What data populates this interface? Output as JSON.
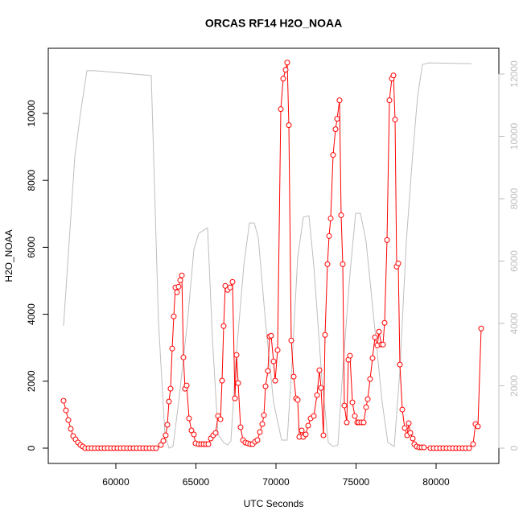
{
  "chart_data": {
    "type": "line",
    "title": "ORCAS RF14 H2O_NOAA",
    "xlabel": "UTC Seconds",
    "ylabel": "H2O_NOAA",
    "xlim": [
      55780,
      83920
    ],
    "ylim": [
      -457,
      11947
    ],
    "y2lim": [
      -490,
      12826
    ],
    "xticks": [
      60000,
      65000,
      70000,
      75000,
      80000
    ],
    "yticks": [
      0,
      2000,
      4000,
      6000,
      8000,
      10000
    ],
    "y2ticks": [
      0,
      2000,
      4000,
      6000,
      8000,
      10000,
      12000
    ],
    "y2color": "#bebebe",
    "series": [
      {
        "color": "#ff0000",
        "marker": "circle",
        "x": [
          56734,
          56884,
          57035,
          57186,
          57337,
          57487,
          57638,
          57789,
          57940,
          58090,
          58291,
          58492,
          58693,
          58894,
          59095,
          59296,
          59497,
          59698,
          59899,
          60101,
          60302,
          60503,
          60704,
          60905,
          61106,
          61307,
          61508,
          61709,
          61910,
          62111,
          62312,
          62513,
          62814,
          62965,
          63116,
          63216,
          63317,
          63417,
          63518,
          63618,
          63719,
          63819,
          63920,
          64020,
          64121,
          64221,
          64322,
          64422,
          64573,
          64724,
          64874,
          64975,
          65176,
          65327,
          65477,
          65628,
          65779,
          65930,
          66080,
          66231,
          66382,
          66533,
          66633,
          66734,
          66834,
          66985,
          67136,
          67286,
          67437,
          67538,
          67638,
          67789,
          67940,
          68090,
          68241,
          68392,
          68543,
          68694,
          68844,
          68995,
          69146,
          69246,
          69347,
          69497,
          69598,
          69698,
          69849,
          69950,
          70101,
          70302,
          70452,
          70603,
          70703,
          70804,
          70955,
          71106,
          71256,
          71357,
          71457,
          71608,
          71709,
          71859,
          72010,
          72161,
          72362,
          72563,
          72713,
          72814,
          72965,
          73065,
          73216,
          73317,
          73417,
          73568,
          73719,
          73819,
          73970,
          74070,
          74171,
          74271,
          74422,
          74523,
          74623,
          74774,
          74925,
          75076,
          75176,
          75327,
          75477,
          75628,
          75729,
          75879,
          76030,
          76181,
          76332,
          76432,
          76583,
          76683,
          76784,
          76935,
          77085,
          77236,
          77337,
          77437,
          77538,
          77638,
          77739,
          77889,
          78040,
          78191,
          78291,
          78392,
          78543,
          78643,
          78794,
          78945,
          79095,
          79246,
          79648,
          79849,
          80050,
          80251,
          80452,
          80653,
          80854,
          81055,
          81256,
          81457,
          81658,
          81859,
          82060,
          82311,
          82462,
          82613,
          82814
        ],
        "values": [
          1416,
          1128,
          840,
          576,
          360,
          264,
          168,
          96,
          48,
          0,
          0,
          0,
          0,
          0,
          0,
          0,
          0,
          0,
          0,
          0,
          0,
          0,
          0,
          0,
          0,
          0,
          0,
          0,
          0,
          0,
          0,
          0,
          96,
          216,
          384,
          696,
          1392,
          1776,
          2976,
          3936,
          4800,
          4656,
          4824,
          5016,
          5160,
          2712,
          1776,
          1872,
          888,
          528,
          408,
          144,
          120,
          120,
          120,
          120,
          120,
          288,
          384,
          456,
          960,
          864,
          2016,
          3648,
          4848,
          4728,
          4800,
          4968,
          1488,
          2784,
          1944,
          624,
          240,
          168,
          144,
          120,
          120,
          192,
          240,
          480,
          720,
          984,
          1848,
          2304,
          3336,
          3360,
          2592,
          2016,
          2928,
          10128,
          11040,
          11304,
          11520,
          9648,
          3216,
          2136,
          1488,
          1440,
          336,
          528,
          336,
          408,
          672,
          888,
          960,
          1584,
          2328,
          1800,
          384,
          3384,
          5496,
          6336,
          6864,
          8760,
          9528,
          9840,
          10392,
          6960,
          5496,
          1272,
          768,
          2640,
          2760,
          1368,
          960,
          768,
          768,
          768,
          768,
          1224,
          1464,
          2064,
          2688,
          3312,
          3072,
          3480,
          3096,
          3096,
          3744,
          6216,
          10392,
          11040,
          11136,
          9816,
          5424,
          5520,
          2496,
          1152,
          600,
          384,
          744,
          456,
          288,
          120,
          48,
          24,
          24,
          24,
          0,
          0,
          0,
          0,
          0,
          0,
          0,
          0,
          0,
          0,
          0,
          0,
          0,
          120,
          720,
          648,
          3576
        ]
      },
      {
        "color": "#bebebe",
        "axis": "y2",
        "x": [
          56734,
          57437,
          57789,
          58191,
          58693,
          62211,
          62663,
          63065,
          63317,
          63568,
          63920,
          64472,
          64874,
          65176,
          65729,
          66030,
          66382,
          66734,
          66985,
          67186,
          67487,
          67990,
          68342,
          68643,
          68894,
          69347,
          69849,
          70352,
          70703,
          71005,
          71357,
          71709,
          72060,
          72362,
          72864,
          73266,
          73568,
          73869,
          74171,
          74623,
          74975,
          75276,
          75628,
          76131,
          76633,
          76985,
          77387,
          77739,
          78141,
          78543,
          78844,
          79146,
          79548,
          82211
        ],
        "values": [
          3922,
          9339,
          10733,
          12107,
          12107,
          11952,
          4051,
          439,
          0,
          52,
          1471,
          4051,
          6372,
          6889,
          7069,
          3535,
          439,
          181,
          103,
          232,
          2761,
          5857,
          7224,
          7224,
          6760,
          4051,
          1471,
          258,
          258,
          2761,
          6114,
          7405,
          7456,
          5857,
          2245,
          181,
          52,
          103,
          2503,
          5599,
          7534,
          7534,
          6631,
          4051,
          1471,
          181,
          52,
          2503,
          6631,
          9468,
          11274,
          12306,
          12358,
          12332
        ]
      }
    ]
  }
}
